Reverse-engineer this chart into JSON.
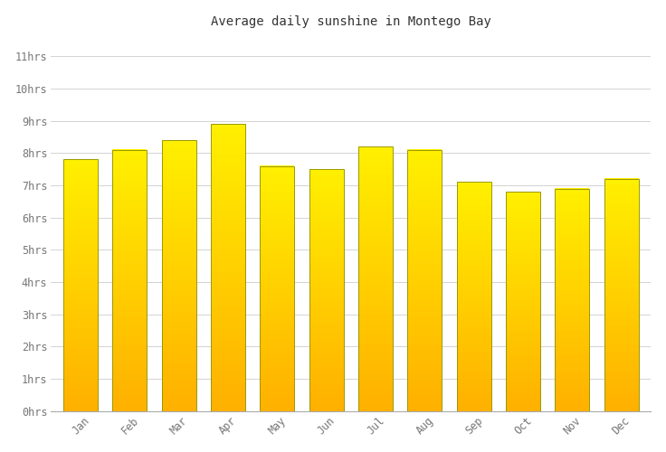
{
  "months": [
    "Jan",
    "Feb",
    "Mar",
    "Apr",
    "May",
    "Jun",
    "Jul",
    "Aug",
    "Sep",
    "Oct",
    "Nov",
    "Dec"
  ],
  "values": [
    7.8,
    8.1,
    8.4,
    8.9,
    7.6,
    7.5,
    8.2,
    8.1,
    7.1,
    6.8,
    6.9,
    7.2
  ],
  "bar_color": "#FFE800",
  "bar_bottom_color": "#FFB000",
  "bar_edge_color": "#999900",
  "title": "Average daily sunshine in Montego Bay",
  "title_fontsize": 10,
  "ytick_labels": [
    "0hrs",
    "1hrs",
    "2hrs",
    "3hrs",
    "4hrs",
    "5hrs",
    "6hrs",
    "7hrs",
    "8hrs",
    "9hrs",
    "10hrs",
    "11hrs"
  ],
  "ytick_values": [
    0,
    1,
    2,
    3,
    4,
    5,
    6,
    7,
    8,
    9,
    10,
    11
  ],
  "ylim": [
    0,
    11.5
  ],
  "background_color": "#ffffff",
  "grid_color": "#cccccc",
  "tick_label_color": "#777777",
  "axis_label_fontsize": 8.5,
  "font_family": "monospace"
}
